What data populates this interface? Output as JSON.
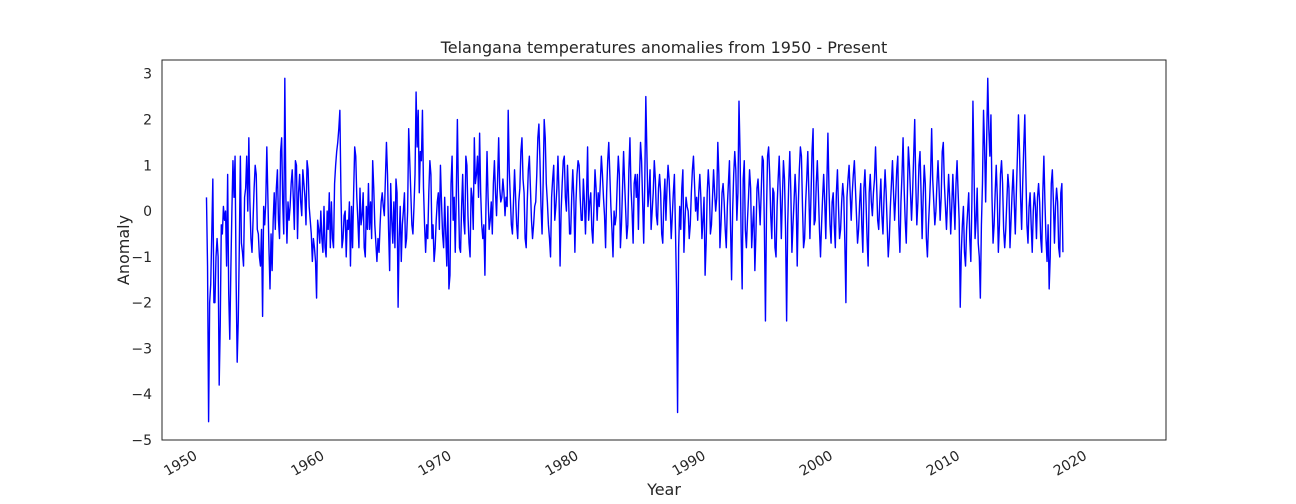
{
  "chart_data": {
    "type": "line",
    "title": "Telangana temperatures anomalies from 1950 - Present",
    "xlabel": "Year",
    "ylabel": "Anomaly",
    "xlim": [
      1947.5,
      2026.5
    ],
    "ylim": [
      -5,
      3.3
    ],
    "x_ticks": [
      "1950",
      "1960",
      "1970",
      "1980",
      "1990",
      "2000",
      "2010",
      "2020"
    ],
    "y_ticks": [
      "3",
      "2",
      "1",
      "0",
      "−1",
      "−2",
      "−3",
      "−4",
      "−5"
    ],
    "grid": false,
    "legend": "none",
    "line_color": "#0000ff",
    "series": [
      {
        "x_start": 1951.0,
        "x_step": 0.0833,
        "values": [
          0.3,
          -1.2,
          -4.6,
          -2.0,
          -1.6,
          -0.5,
          0.7,
          -2.0,
          -2.0,
          -1.0,
          -0.6,
          -1.0,
          -3.8,
          -2.5,
          -0.3,
          -0.5,
          0.1,
          -0.2,
          0.0,
          -1.2,
          0.8,
          -1.8,
          -2.8,
          -1.3,
          0.0,
          1.1,
          0.3,
          1.2,
          -1.5,
          -3.3,
          -2.4,
          -0.8,
          1.2,
          -0.7,
          -0.9,
          -1.2,
          0.3,
          0.5,
          1.2,
          0.0,
          1.6,
          0.2,
          -0.6,
          -0.9,
          -0.2,
          0.5,
          1.0,
          0.8,
          -0.4,
          -0.5,
          -1.0,
          -1.2,
          -0.4,
          -2.3,
          0.1,
          -0.3,
          0.2,
          1.4,
          0.3,
          -0.8,
          -1.7,
          -0.5,
          -1.3,
          -0.2,
          0.4,
          -0.4,
          0.5,
          0.9,
          -0.2,
          -0.6,
          1.3,
          1.6,
          0.2,
          -0.5,
          2.9,
          0.3,
          -0.7,
          0.2,
          -0.2,
          0.1,
          0.6,
          0.9,
          0.3,
          -0.4,
          1.1,
          1.0,
          -0.6,
          0.4,
          0.8,
          0.2,
          -0.1,
          0.9,
          0.6,
          0.3,
          -0.3,
          1.1,
          0.9,
          0.1,
          -0.2,
          -0.5,
          -1.1,
          -0.6,
          -0.8,
          -1.1,
          -1.9,
          -0.2,
          -0.4,
          -0.7,
          0.0,
          -0.6,
          -0.9,
          0.1,
          -0.8,
          -1.0,
          0.0,
          -0.4,
          0.4,
          -0.8,
          0.2,
          -0.6,
          -0.8,
          0.6,
          1.0,
          1.3,
          1.5,
          1.8,
          2.2,
          0.4,
          -0.8,
          -0.6,
          -0.1,
          0.0,
          -1.0,
          -0.2,
          -0.4,
          0.2,
          -1.2,
          0.1,
          -0.8,
          0.4,
          1.4,
          1.2,
          0.3,
          -0.2,
          -0.8,
          0.5,
          -0.3,
          -0.1,
          0.4,
          -0.8,
          -1.0,
          0.1,
          -0.4,
          0.6,
          -0.4,
          0.2,
          -0.6,
          1.1,
          0.5,
          -0.3,
          -0.7,
          -1.1,
          -0.6,
          -0.9,
          -0.3,
          0.2,
          0.4,
          0.1,
          -0.1,
          0.7,
          1.5,
          0.8,
          -0.4,
          -1.3,
          0.6,
          -0.2,
          -0.7,
          0.2,
          -0.8,
          0.7,
          0.4,
          -2.1,
          -0.6,
          0.1,
          -1.1,
          -0.3,
          0.0,
          0.4,
          -0.8,
          -0.6,
          0.0,
          1.8,
          1.1,
          0.4,
          -0.3,
          -0.5,
          0.1,
          0.8,
          2.6,
          1.4,
          2.2,
          0.4,
          1.3,
          1.1,
          2.2,
          0.5,
          -0.3,
          -0.9,
          -0.3,
          -0.6,
          0.4,
          1.1,
          0.8,
          -0.6,
          -0.3,
          -1.1,
          -0.8,
          -0.2,
          0.2,
          0.4,
          -0.4,
          1.0,
          0.2,
          -0.5,
          -0.8,
          0.3,
          -0.5,
          -1.2,
          0.1,
          -1.7,
          -1.4,
          0.6,
          1.2,
          -0.2,
          0.3,
          -0.9,
          0.4,
          2.0,
          0.4,
          -0.8,
          -0.9,
          0.1,
          0.8,
          -0.2,
          -0.5,
          1.2,
          1.0,
          -0.1,
          -0.7,
          -1.0,
          0.5,
          0.3,
          -0.4,
          1.6,
          0.6,
          0.8,
          1.2,
          0.3,
          1.7,
          0.4,
          -0.3,
          -0.6,
          -0.3,
          -1.4,
          0.1,
          1.3,
          0.3,
          -0.4,
          -0.2,
          0.2,
          -0.5,
          0.6,
          1.1,
          0.4,
          -0.1,
          0.7,
          1.6,
          0.5,
          0.2,
          0.3,
          0.7,
          0.4,
          -0.1,
          0.3,
          0.1,
          2.2,
          0.9,
          0.3,
          -0.3,
          -0.5,
          0.2,
          0.9,
          0.3,
          -0.3,
          -0.6,
          0.2,
          0.5,
          1.3,
          1.6,
          0.7,
          0.4,
          -0.6,
          -0.8,
          0.2,
          0.9,
          1.2,
          0.5,
          -0.2,
          -0.6,
          -0.3,
          0.1,
          0.2,
          0.8,
          1.6,
          1.9,
          1.1,
          0.1,
          -0.5,
          0.6,
          2.0,
          1.6,
          0.6,
          0.2,
          -0.3,
          -0.6,
          -1.0,
          0.3,
          0.7,
          1.0,
          -0.2,
          0.1,
          0.5,
          1.2,
          0.4,
          -1.2,
          0.0,
          0.6,
          1.1,
          1.2,
          0.3,
          0.0,
          1.0,
          0.3,
          -0.5,
          -0.5,
          0.3,
          0.9,
          0.3,
          -0.9,
          0.2,
          0.8,
          1.1,
          1.0,
          0.3,
          -0.2,
          -0.2,
          0.7,
          0.2,
          -0.5,
          0.3,
          1.4,
          -0.2,
          0.2,
          0.4,
          -0.4,
          -0.7,
          0.1,
          0.9,
          0.5,
          -0.2,
          0.4,
          0.1,
          0.6,
          1.2,
          0.8,
          0.3,
          -0.1,
          -0.8,
          0.4,
          1.1,
          1.5,
          0.8,
          0.1,
          -0.4,
          -1.0,
          0.0,
          -0.3,
          -0.1,
          0.6,
          1.2,
          0.8,
          -0.8,
          -0.3,
          0.5,
          1.3,
          0.6,
          0.0,
          -0.6,
          -0.3,
          0.9,
          1.6,
          0.5,
          0.0,
          -0.7,
          0.6,
          0.8,
          0.3,
          0.8,
          -0.4,
          0.7,
          1.5,
          1.1,
          0.2,
          -0.7,
          0.6,
          2.5,
          1.3,
          0.1,
          0.4,
          0.9,
          -0.4,
          0.0,
          0.4,
          1.1,
          0.7,
          -0.1,
          -0.3,
          0.5,
          0.8,
          0.4,
          -0.5,
          -0.7,
          0.2,
          0.7,
          -0.2,
          0.5,
          1.0,
          0.7,
          0.1,
          -0.6,
          -0.1,
          0.4,
          0.8,
          -0.4,
          -1.7,
          -4.4,
          -0.8,
          0.1,
          -0.4,
          0.5,
          0.9,
          -0.9,
          -0.2,
          0.3,
          0.1,
          0.0,
          -0.6,
          -0.3,
          0.4,
          0.9,
          1.2,
          0.6,
          0.0,
          0.3,
          -0.2,
          0.4,
          0.8,
          0.3,
          -0.6,
          -0.2,
          0.3,
          -1.4,
          -0.7,
          0.4,
          0.9,
          0.5,
          -0.5,
          -0.3,
          0.3,
          0.9,
          0.4,
          0.0,
          0.3,
          1.5,
          0.8,
          -0.8,
          -0.3,
          0.4,
          0.6,
          0.2,
          -0.4,
          -0.8,
          0.1,
          0.6,
          1.1,
          -0.3,
          -1.5,
          0.0,
          0.8,
          1.3,
          0.9,
          -0.2,
          0.4,
          2.4,
          1.3,
          -0.5,
          -1.7,
          0.7,
          1.1,
          -0.4,
          -0.8,
          -0.2,
          0.3,
          0.9,
          0.5,
          -0.8,
          -0.3,
          0.1,
          -1.3,
          -0.5,
          0.5,
          0.7,
          0.2,
          -0.3,
          0.4,
          1.2,
          1.1,
          -0.4,
          -2.4,
          0.0,
          1.2,
          1.4,
          0.8,
          -0.1,
          -0.6,
          0.5,
          0.4,
          -0.8,
          -1.0,
          0.1,
          0.7,
          1.2,
          0.4,
          -0.6,
          0.3,
          1.1,
          0.7,
          -0.4,
          -2.4,
          -0.3,
          0.6,
          1.3,
          0.4,
          -0.9,
          -0.3,
          0.2,
          0.8,
          0.3,
          -1.2,
          0.1,
          0.9,
          1.4,
          1.2,
          0.1,
          -0.8,
          -0.6,
          0.2,
          0.7,
          1.3,
          0.4,
          -0.6,
          0.3,
          1.3,
          1.8,
          -0.3,
          -0.2,
          0.6,
          1.1,
          0.4,
          -0.4,
          -1.0,
          -0.3,
          0.3,
          0.8,
          0.2,
          -0.6,
          0.6,
          1.7,
          0.5,
          -0.3,
          -0.7,
          0.2,
          0.4,
          -0.3,
          -0.8,
          0.4,
          0.9,
          0.1,
          -0.6,
          -0.4,
          0.2,
          0.6,
          0.3,
          -0.7,
          -2.0,
          0.3,
          0.7,
          1.0,
          0.4,
          -0.2,
          0.4,
          0.8,
          1.1,
          0.5,
          -0.1,
          -0.7,
          -0.4,
          0.2,
          0.6,
          -0.3,
          -0.9,
          0.5,
          0.9,
          0.2,
          -0.6,
          -1.2,
          0.4,
          0.8,
          0.2,
          -0.1,
          0.4,
          0.7,
          1.4,
          0.6,
          -0.2,
          -0.4,
          0.2,
          0.7,
          -0.1,
          -0.5,
          0.3,
          0.9,
          0.4,
          -0.3,
          -1.0,
          -0.6,
          0.1,
          0.6,
          1.1,
          0.4,
          -0.2,
          0.3,
          0.9,
          1.2,
          -0.3,
          -0.9,
          0.2,
          0.8,
          1.6,
          0.5,
          -0.2,
          -0.7,
          0.3,
          1.4,
          1.0,
          0.4,
          -0.2,
          0.4,
          1.2,
          2.0,
          0.6,
          -0.3,
          0.2,
          1.0,
          1.3,
          0.4,
          -0.6,
          0.3,
          1.0,
          0.6,
          -0.6,
          -1.0,
          -0.3,
          0.2,
          0.8,
          1.8,
          0.7,
          0.2,
          -0.3,
          0.0,
          0.6,
          1.1,
          0.5,
          -0.2,
          0.3,
          1.3,
          1.5,
          0.6,
          0.1,
          -0.4,
          0.2,
          0.8,
          0.3,
          -0.5,
          0.1,
          0.8,
          0.2,
          -0.4,
          0.6,
          1.1,
          0.4,
          -0.2,
          -2.1,
          -0.9,
          -0.3,
          0.1,
          -0.9,
          -1.2,
          -0.4,
          0.0,
          0.4,
          -0.6,
          -1.1,
          0.2,
          2.4,
          0.9,
          -0.6,
          -0.2,
          0.5,
          -0.7,
          -1.0,
          -1.9,
          -0.3,
          0.6,
          2.2,
          1.4,
          0.2,
          1.6,
          2.9,
          1.8,
          1.2,
          2.1,
          0.3,
          -0.7,
          -0.3,
          0.4,
          1.0,
          0.3,
          -0.9,
          -0.3,
          0.8,
          1.1,
          0.6,
          -0.4,
          -0.8,
          -0.4,
          0.2,
          0.8,
          0.5,
          -0.8,
          -0.2,
          0.4,
          0.9,
          0.2,
          -0.5,
          0.4,
          1.2,
          2.1,
          1.3,
          0.3,
          -0.4,
          0.6,
          1.4,
          2.1,
          0.8,
          -0.3,
          -0.7,
          0.1,
          0.4,
          -0.3,
          -0.9,
          0.0,
          0.4,
          0.1,
          -0.6,
          0.3,
          0.6,
          0.2,
          -0.6,
          -0.9,
          0.4,
          1.2,
          0.2,
          -0.6,
          -1.1,
          -0.3,
          -1.7,
          -1.0,
          0.6,
          0.9,
          0.2,
          -0.7,
          0.1,
          0.5,
          0.2,
          -0.8,
          -1.0,
          0.4,
          0.6,
          -0.9
        ]
      }
    ]
  }
}
